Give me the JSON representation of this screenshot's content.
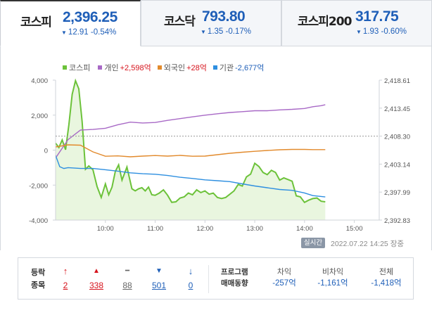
{
  "tabs": [
    {
      "name": "코스피",
      "value": "2,396.25",
      "arrow": "▼",
      "change": "12.91 -0.54%",
      "active": true
    },
    {
      "name": "코스닥",
      "value": "793.80",
      "arrow": "▼",
      "change": "1.35 -0.17%",
      "active": false
    },
    {
      "name": "코스피200",
      "value": "317.75",
      "arrow": "▼",
      "change": "1.93 -0.60%",
      "active": false
    }
  ],
  "legend": [
    {
      "name": "코스피",
      "value": "",
      "color": "#6cc23a",
      "value_color": ""
    },
    {
      "name": "개인",
      "value": "+2,598억",
      "color": "#a869c6",
      "value_color": "red"
    },
    {
      "name": "외국인",
      "value": "+28억",
      "color": "#e28a2c",
      "value_color": "red"
    },
    {
      "name": "기관",
      "value": "-2,677억",
      "color": "#2e8fe0",
      "value_color": "blue"
    }
  ],
  "chart_data": {
    "type": "line",
    "x_ticks": [
      "10:00",
      "11:00",
      "12:00",
      "13:00",
      "14:00",
      "15:00"
    ],
    "x_range": [
      "09:00",
      "15:30"
    ],
    "left_axis": {
      "ticks": [
        "4,000",
        "2,000",
        "0",
        "-2,000",
        "-4,000"
      ],
      "range": [
        -4000,
        4000
      ]
    },
    "right_axis": {
      "ticks": [
        "2,418.61",
        "2,413.45",
        "2,408.30",
        "2,403.14",
        "2,397.99",
        "2,392.83"
      ],
      "range": [
        2392.83,
        2418.61
      ]
    },
    "reference_line": 2408.3,
    "grid": false,
    "series": [
      {
        "name": "코스피",
        "axis": "right",
        "style": "area",
        "color": "#6cc23a",
        "x": [
          "09:00",
          "09:04",
          "09:08",
          "09:12",
          "09:16",
          "09:20",
          "09:24",
          "09:28",
          "09:32",
          "09:36",
          "09:40",
          "09:45",
          "09:50",
          "09:55",
          "10:00",
          "10:04",
          "10:08",
          "10:12",
          "10:16",
          "10:20",
          "10:26",
          "10:32",
          "10:36",
          "10:40",
          "10:44",
          "10:48",
          "10:52",
          "10:56",
          "11:00",
          "11:05",
          "11:10",
          "11:15",
          "11:20",
          "11:25",
          "11:30",
          "11:35",
          "11:40",
          "11:45",
          "11:50",
          "11:55",
          "12:00",
          "12:05",
          "12:10",
          "12:15",
          "12:20",
          "12:25",
          "12:30",
          "12:35",
          "12:40",
          "12:45",
          "12:50",
          "12:55",
          "13:00",
          "13:05",
          "13:10",
          "13:15",
          "13:20",
          "13:25",
          "13:30",
          "13:35",
          "13:40",
          "13:45",
          "13:50",
          "13:55",
          "14:00",
          "14:05",
          "14:10",
          "14:15",
          "14:20",
          "14:25"
        ],
        "values": [
          2407.0,
          2406.2,
          2407.6,
          2405.8,
          2410.4,
          2416.0,
          2418.5,
          2417.0,
          2411.0,
          2402.2,
          2402.8,
          2402.1,
          2399.0,
          2397.0,
          2399.5,
          2397.5,
          2398.9,
          2401.8,
          2403.0,
          2400.2,
          2402.6,
          2398.6,
          2398.2,
          2398.6,
          2398.8,
          2398.2,
          2398.9,
          2397.5,
          2397.4,
          2397.8,
          2398.4,
          2397.4,
          2396.1,
          2396.2,
          2396.9,
          2397.1,
          2397.8,
          2397.5,
          2398.4,
          2397.9,
          2398.2,
          2397.6,
          2397.8,
          2397.0,
          2396.8,
          2397.0,
          2397.6,
          2398.2,
          2399.4,
          2399.1,
          2400.8,
          2401.3,
          2403.3,
          2402.7,
          2401.6,
          2401.2,
          2402.0,
          2401.6,
          2400.2,
          2400.6,
          2400.3,
          2400.0,
          2397.3,
          2397.1,
          2396.1,
          2396.5,
          2396.8,
          2396.9,
          2396.3,
          2396.2
        ]
      },
      {
        "name": "개인",
        "axis": "left",
        "style": "line",
        "color": "#a869c6",
        "x": [
          "09:00",
          "09:15",
          "09:30",
          "09:45",
          "10:00",
          "10:15",
          "10:30",
          "10:45",
          "11:00",
          "11:15",
          "11:30",
          "11:45",
          "12:00",
          "12:15",
          "12:30",
          "12:45",
          "13:00",
          "13:15",
          "13:30",
          "13:45",
          "14:00",
          "14:10",
          "14:20",
          "14:25"
        ],
        "values": [
          -450,
          600,
          1150,
          1180,
          1250,
          1450,
          1600,
          1550,
          1580,
          1700,
          1800,
          1900,
          2000,
          2080,
          2150,
          2200,
          2250,
          2250,
          2300,
          2330,
          2380,
          2480,
          2540,
          2598
        ]
      },
      {
        "name": "외국인",
        "axis": "left",
        "style": "line",
        "color": "#e28a2c",
        "x": [
          "09:00",
          "09:15",
          "09:30",
          "09:45",
          "10:00",
          "10:15",
          "10:30",
          "10:45",
          "11:00",
          "11:15",
          "11:30",
          "11:45",
          "12:00",
          "12:15",
          "12:30",
          "12:45",
          "13:00",
          "13:15",
          "13:30",
          "13:45",
          "14:00",
          "14:10",
          "14:20",
          "14:25"
        ],
        "values": [
          180,
          300,
          280,
          -100,
          -350,
          -330,
          -380,
          -340,
          -310,
          -340,
          -300,
          -350,
          -340,
          -260,
          -180,
          -120,
          -70,
          -20,
          20,
          40,
          40,
          30,
          30,
          28
        ]
      },
      {
        "name": "기관",
        "axis": "left",
        "style": "line",
        "color": "#2e8fe0",
        "x": [
          "09:00",
          "09:05",
          "09:10",
          "09:15",
          "09:30",
          "09:45",
          "10:00",
          "10:15",
          "10:30",
          "10:45",
          "11:00",
          "11:15",
          "11:30",
          "11:45",
          "12:00",
          "12:15",
          "12:30",
          "12:45",
          "13:00",
          "13:15",
          "13:30",
          "13:45",
          "14:00",
          "14:10",
          "14:20",
          "14:25"
        ],
        "values": [
          -300,
          -950,
          -1050,
          -1000,
          -1050,
          -1050,
          -1120,
          -1200,
          -1300,
          -1350,
          -1380,
          -1450,
          -1550,
          -1620,
          -1700,
          -1750,
          -1800,
          -1930,
          -2050,
          -2150,
          -2250,
          -2300,
          -2450,
          -2600,
          -2650,
          -2677
        ]
      }
    ]
  },
  "realtime_label": "실시간",
  "timestamp": "2022.07.22 14:25",
  "market_status": "장중",
  "breadth": {
    "label_line1": "등락",
    "label_line2": "종목",
    "items": [
      {
        "icon": "↑",
        "count": "2",
        "color": "#d6131c"
      },
      {
        "icon": "▲",
        "count": "338",
        "color": "#d6131c"
      },
      {
        "icon": "━",
        "count": "88",
        "color": "#666666"
      },
      {
        "icon": "▼",
        "count": "501",
        "color": "#1f5fb8"
      },
      {
        "icon": "↓",
        "count": "0",
        "color": "#1f5fb8"
      }
    ]
  },
  "program": {
    "label_line1": "프로그램",
    "label_line2": "매매동향",
    "columns": [
      {
        "label": "차익",
        "value": "-257억"
      },
      {
        "label": "비차익",
        "value": "-1,161억"
      },
      {
        "label": "전체",
        "value": "-1,418억"
      }
    ]
  }
}
